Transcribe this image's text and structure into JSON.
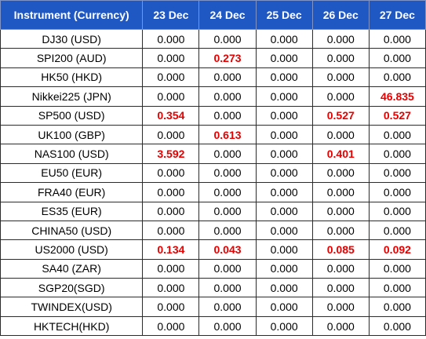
{
  "table": {
    "headers": [
      "Instrument (Currency)",
      "23 Dec",
      "24 Dec",
      "25 Dec",
      "26 Dec",
      "27 Dec"
    ],
    "highlight_color": "#e60000",
    "header_bg": "#1f57c3",
    "rows": [
      {
        "instrument": "DJ30 (USD)",
        "values": [
          "0.000",
          "0.000",
          "0.000",
          "0.000",
          "0.000"
        ],
        "highlight": [
          false,
          false,
          false,
          false,
          false
        ]
      },
      {
        "instrument": "SPI200 (AUD)",
        "values": [
          "0.000",
          "0.273",
          "0.000",
          "0.000",
          "0.000"
        ],
        "highlight": [
          false,
          true,
          false,
          false,
          false
        ]
      },
      {
        "instrument": "HK50 (HKD)",
        "values": [
          "0.000",
          "0.000",
          "0.000",
          "0.000",
          "0.000"
        ],
        "highlight": [
          false,
          false,
          false,
          false,
          false
        ]
      },
      {
        "instrument": "Nikkei225 (JPN)",
        "values": [
          "0.000",
          "0.000",
          "0.000",
          "0.000",
          "46.835"
        ],
        "highlight": [
          false,
          false,
          false,
          false,
          true
        ]
      },
      {
        "instrument": "SP500 (USD)",
        "values": [
          "0.354",
          "0.000",
          "0.000",
          "0.527",
          "0.527"
        ],
        "highlight": [
          true,
          false,
          false,
          true,
          true
        ]
      },
      {
        "instrument": "UK100 (GBP)",
        "values": [
          "0.000",
          "0.613",
          "0.000",
          "0.000",
          "0.000"
        ],
        "highlight": [
          false,
          true,
          false,
          false,
          false
        ]
      },
      {
        "instrument": "NAS100 (USD)",
        "values": [
          "3.592",
          "0.000",
          "0.000",
          "0.401",
          "0.000"
        ],
        "highlight": [
          true,
          false,
          false,
          true,
          false
        ]
      },
      {
        "instrument": "EU50 (EUR)",
        "values": [
          "0.000",
          "0.000",
          "0.000",
          "0.000",
          "0.000"
        ],
        "highlight": [
          false,
          false,
          false,
          false,
          false
        ]
      },
      {
        "instrument": "FRA40 (EUR)",
        "values": [
          "0.000",
          "0.000",
          "0.000",
          "0.000",
          "0.000"
        ],
        "highlight": [
          false,
          false,
          false,
          false,
          false
        ]
      },
      {
        "instrument": "ES35 (EUR)",
        "values": [
          "0.000",
          "0.000",
          "0.000",
          "0.000",
          "0.000"
        ],
        "highlight": [
          false,
          false,
          false,
          false,
          false
        ]
      },
      {
        "instrument": "CHINA50 (USD)",
        "values": [
          "0.000",
          "0.000",
          "0.000",
          "0.000",
          "0.000"
        ],
        "highlight": [
          false,
          false,
          false,
          false,
          false
        ]
      },
      {
        "instrument": "US2000 (USD)",
        "values": [
          "0.134",
          "0.043",
          "0.000",
          "0.085",
          "0.092"
        ],
        "highlight": [
          true,
          true,
          false,
          true,
          true
        ]
      },
      {
        "instrument": "SA40 (ZAR)",
        "values": [
          "0.000",
          "0.000",
          "0.000",
          "0.000",
          "0.000"
        ],
        "highlight": [
          false,
          false,
          false,
          false,
          false
        ]
      },
      {
        "instrument": "SGP20(SGD)",
        "values": [
          "0.000",
          "0.000",
          "0.000",
          "0.000",
          "0.000"
        ],
        "highlight": [
          false,
          false,
          false,
          false,
          false
        ]
      },
      {
        "instrument": "TWINDEX(USD)",
        "values": [
          "0.000",
          "0.000",
          "0.000",
          "0.000",
          "0.000"
        ],
        "highlight": [
          false,
          false,
          false,
          false,
          false
        ]
      },
      {
        "instrument": "HKTECH(HKD)",
        "values": [
          "0.000",
          "0.000",
          "0.000",
          "0.000",
          "0.000"
        ],
        "highlight": [
          false,
          false,
          false,
          false,
          false
        ]
      }
    ]
  }
}
